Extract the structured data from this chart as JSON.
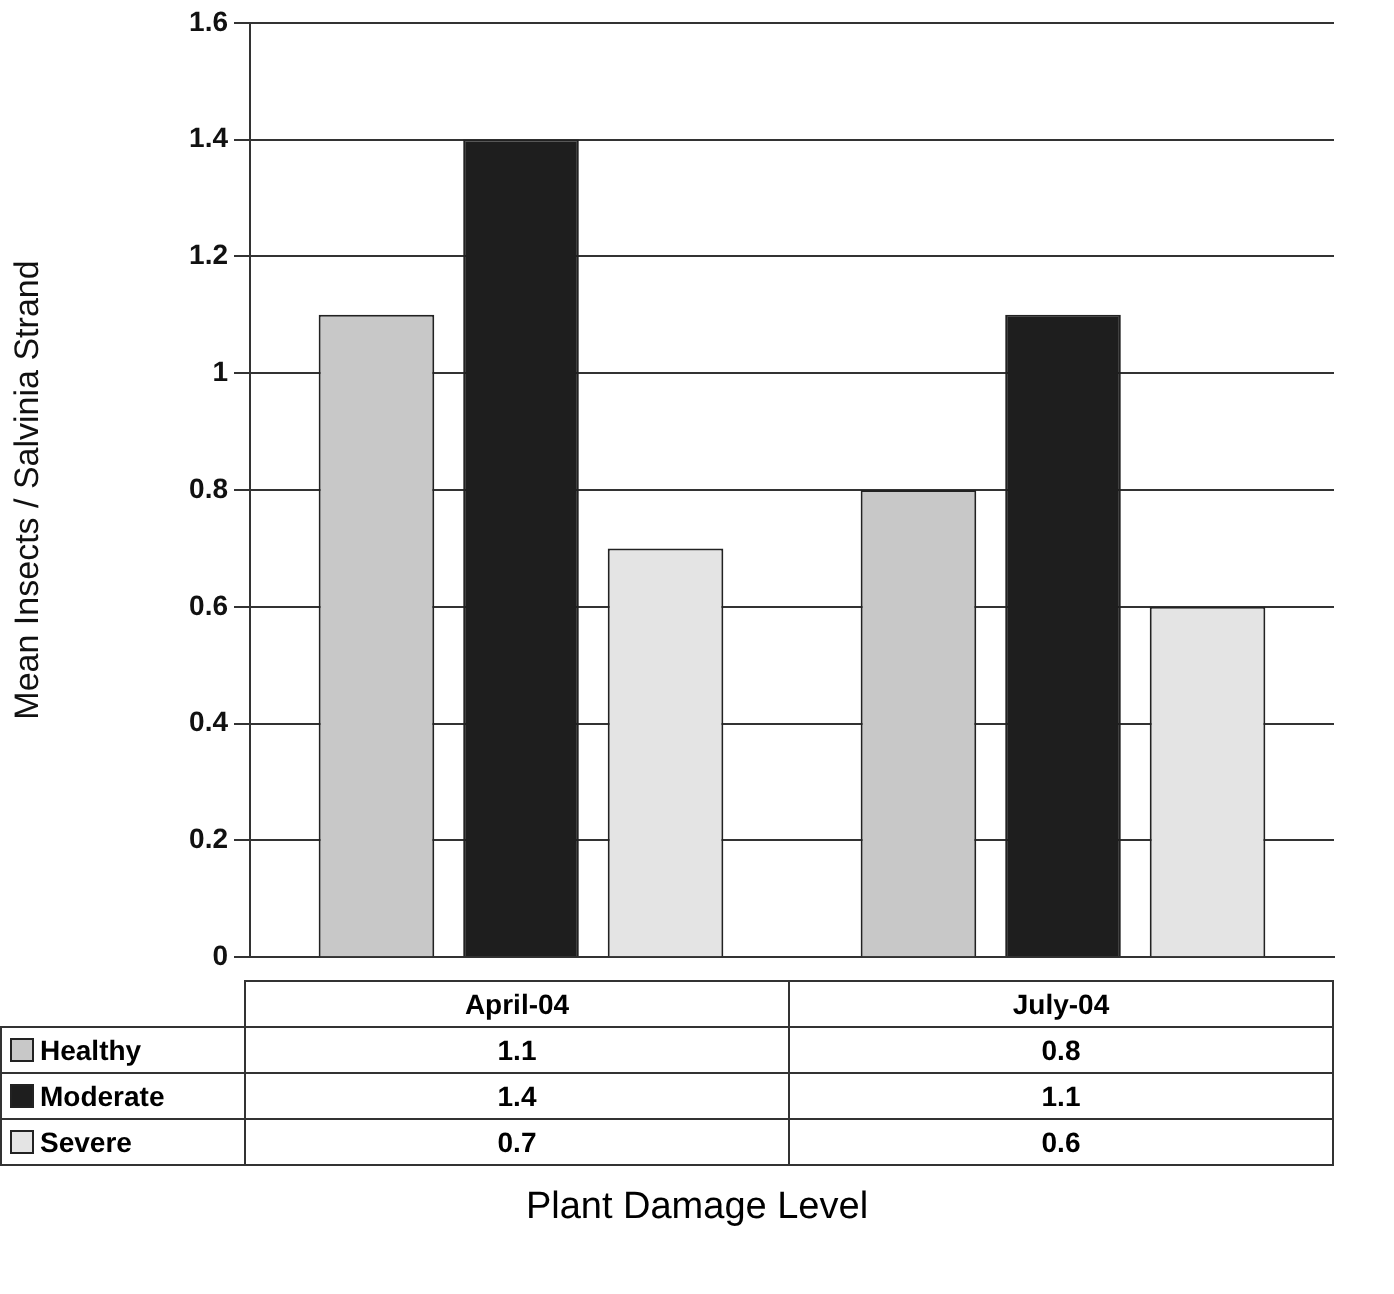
{
  "chart_data": {
    "type": "bar",
    "xlabel": "Plant Damage Level",
    "ylabel": "Mean Insects / Salvinia Strand",
    "categories": [
      "April-04",
      "July-04"
    ],
    "series": [
      {
        "name": "Healthy",
        "color": "#c8c8c8",
        "values": [
          1.1,
          0.8
        ]
      },
      {
        "name": "Moderate",
        "color": "#1e1e1e",
        "values": [
          1.4,
          1.1
        ]
      },
      {
        "name": "Severe",
        "color": "#e4e4e4",
        "values": [
          0.7,
          0.6
        ]
      }
    ],
    "ylim": [
      0,
      1.6
    ],
    "yticks": [
      0,
      0.2,
      0.4,
      0.6,
      0.8,
      1,
      1.2,
      1.4,
      1.6
    ],
    "grid": "y",
    "data_labels": true,
    "legend": "bottom",
    "tick_labels": "y"
  }
}
